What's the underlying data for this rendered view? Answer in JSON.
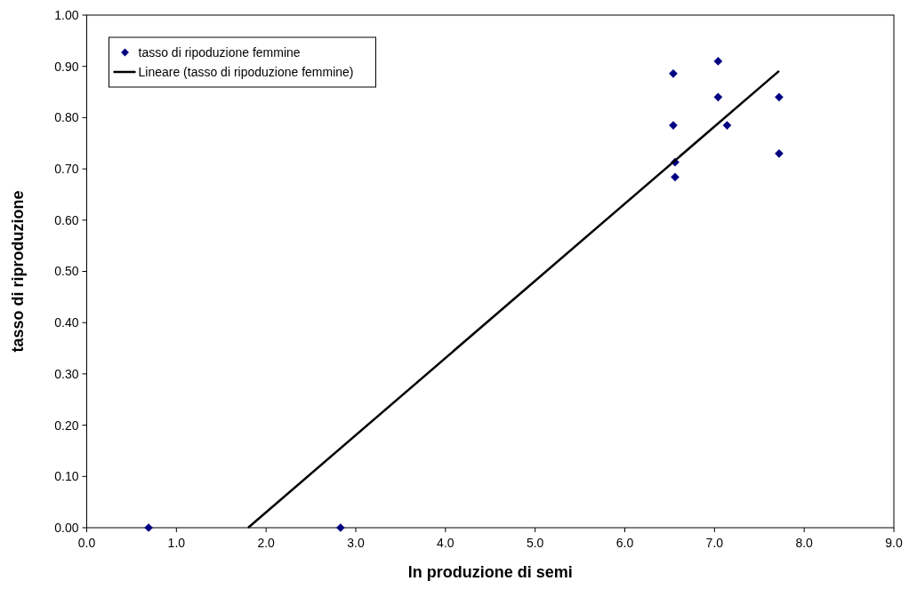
{
  "chart_data": {
    "type": "scatter",
    "xlabel": "ln produzione di semi",
    "ylabel": "tasso di riproduzione",
    "xlim": [
      0,
      9
    ],
    "ylim": [
      0,
      1
    ],
    "xticks": [
      {
        "value": 0,
        "label": "0.0"
      },
      {
        "value": 1,
        "label": "1.0"
      },
      {
        "value": 2,
        "label": "2.0"
      },
      {
        "value": 3,
        "label": "3.0"
      },
      {
        "value": 4,
        "label": "4.0"
      },
      {
        "value": 5,
        "label": "5.0"
      },
      {
        "value": 6,
        "label": "6.0"
      },
      {
        "value": 7,
        "label": "7.0"
      },
      {
        "value": 8,
        "label": "8.0"
      },
      {
        "value": 9,
        "label": "9.0"
      }
    ],
    "yticks": [
      {
        "value": 0,
        "label": "0.00"
      },
      {
        "value": 0.1,
        "label": "0.10"
      },
      {
        "value": 0.2,
        "label": "0.20"
      },
      {
        "value": 0.3,
        "label": "0.30"
      },
      {
        "value": 0.4,
        "label": "0.40"
      },
      {
        "value": 0.5,
        "label": "0.50"
      },
      {
        "value": 0.6,
        "label": "0.60"
      },
      {
        "value": 0.7,
        "label": "0.70"
      },
      {
        "value": 0.8,
        "label": "0.80"
      },
      {
        "value": 0.9,
        "label": "0.90"
      },
      {
        "value": 1,
        "label": "1.00"
      }
    ],
    "grid": false,
    "legend": "top left",
    "marker": "diamond",
    "series": [
      {
        "name": "tasso di ripoduzione femmine",
        "color": "#000080",
        "x": [
          0.69,
          2.83,
          6.54,
          6.54,
          6.56,
          6.56,
          7.04,
          7.04,
          7.14,
          7.72,
          7.72
        ],
        "values": [
          0,
          0,
          0.886,
          0.785,
          0.713,
          0.684,
          0.91,
          0.84,
          0.785,
          0.84,
          0.73
        ]
      },
      {
        "name": "Lineare (tasso di ripoduzione femmine)",
        "type": "line",
        "color": "#000000",
        "marker": "none",
        "line_style": "solid",
        "x": [
          1.8,
          7.72
        ],
        "values": [
          0,
          0.891
        ]
      }
    ]
  }
}
